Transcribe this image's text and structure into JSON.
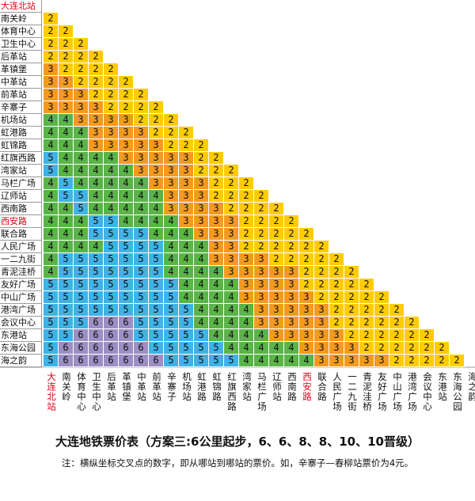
{
  "chart_data": {
    "type": "table",
    "title": "大连地铁票价表（方案三:6公里起步，6、6、8、8、10、10晋级）",
    "note": "注：横纵坐标交叉点的数字，即从哪站到哪站的票价。如，辛寨子—春柳站票价为4元。",
    "stations": [
      "大连北站",
      "南关岭",
      "体育中心",
      "卫生中心",
      "后革站",
      "革镇堡",
      "中革站",
      "前革站",
      "辛寨子",
      "机场站",
      "虹港路",
      "虹锦路",
      "红旗西路",
      "湾家站",
      "马栏广场",
      "辽师站",
      "西南路",
      "西安路",
      "联合路",
      "人民广场",
      "一二九街",
      "青泥洼桥",
      "友好广场",
      "中山广场",
      "港湾广场",
      "会议中心",
      "东港站",
      "东海公园",
      "海之韵"
    ],
    "highlighted": [
      "大连北站",
      "西安路"
    ],
    "fares": [
      [],
      [
        2
      ],
      [
        2,
        2
      ],
      [
        2,
        2,
        2
      ],
      [
        2,
        2,
        2,
        2
      ],
      [
        3,
        2,
        2,
        2,
        2
      ],
      [
        3,
        3,
        2,
        2,
        2,
        2
      ],
      [
        3,
        3,
        3,
        2,
        2,
        2,
        2
      ],
      [
        3,
        3,
        3,
        3,
        2,
        2,
        2,
        2
      ],
      [
        4,
        4,
        3,
        3,
        3,
        3,
        2,
        2,
        2
      ],
      [
        4,
        4,
        4,
        3,
        3,
        3,
        3,
        2,
        2,
        2
      ],
      [
        4,
        4,
        4,
        3,
        3,
        3,
        3,
        3,
        2,
        2,
        2
      ],
      [
        5,
        4,
        4,
        4,
        4,
        3,
        3,
        3,
        3,
        3,
        2,
        2
      ],
      [
        5,
        4,
        4,
        4,
        4,
        4,
        3,
        3,
        3,
        3,
        2,
        2,
        2
      ],
      [
        4,
        5,
        4,
        4,
        4,
        4,
        4,
        3,
        3,
        3,
        3,
        2,
        2,
        2
      ],
      [
        4,
        5,
        5,
        4,
        4,
        4,
        4,
        4,
        3,
        3,
        3,
        2,
        2,
        2,
        2
      ],
      [
        4,
        4,
        5,
        4,
        4,
        4,
        4,
        4,
        3,
        3,
        3,
        3,
        2,
        2,
        2,
        2
      ],
      [
        4,
        4,
        4,
        5,
        5,
        4,
        4,
        4,
        4,
        3,
        3,
        3,
        3,
        2,
        2,
        2,
        2
      ],
      [
        4,
        4,
        4,
        5,
        5,
        5,
        5,
        4,
        4,
        4,
        3,
        3,
        3,
        2,
        2,
        2,
        2,
        2
      ],
      [
        4,
        4,
        4,
        4,
        5,
        5,
        5,
        5,
        4,
        4,
        4,
        3,
        3,
        2,
        2,
        2,
        2,
        2,
        2
      ],
      [
        4,
        5,
        5,
        5,
        5,
        5,
        5,
        5,
        4,
        4,
        4,
        3,
        3,
        3,
        3,
        2,
        2,
        2,
        2,
        2
      ],
      [
        4,
        5,
        5,
        5,
        5,
        5,
        5,
        5,
        4,
        4,
        4,
        4,
        3,
        3,
        3,
        3,
        3,
        2,
        2,
        2,
        2
      ],
      [
        5,
        5,
        5,
        5,
        5,
        5,
        5,
        5,
        5,
        4,
        4,
        4,
        4,
        3,
        3,
        3,
        3,
        2,
        2,
        2,
        2,
        2
      ],
      [
        5,
        5,
        5,
        5,
        5,
        5,
        5,
        5,
        5,
        4,
        4,
        4,
        4,
        3,
        3,
        3,
        3,
        3,
        2,
        2,
        2,
        2,
        2
      ],
      [
        5,
        5,
        5,
        5,
        5,
        5,
        5,
        5,
        5,
        5,
        4,
        4,
        4,
        4,
        3,
        3,
        3,
        3,
        3,
        2,
        2,
        2,
        2,
        2
      ],
      [
        5,
        5,
        5,
        6,
        6,
        6,
        5,
        5,
        5,
        5,
        4,
        4,
        4,
        4,
        3,
        3,
        3,
        3,
        3,
        2,
        2,
        2,
        2,
        2,
        2
      ],
      [
        5,
        5,
        6,
        6,
        6,
        6,
        5,
        5,
        5,
        5,
        5,
        4,
        4,
        4,
        4,
        3,
        3,
        3,
        3,
        3,
        2,
        2,
        2,
        2,
        2,
        2
      ],
      [
        5,
        6,
        6,
        6,
        6,
        6,
        6,
        5,
        5,
        5,
        5,
        5,
        4,
        4,
        4,
        4,
        4,
        3,
        3,
        3,
        3,
        2,
        2,
        2,
        2,
        2,
        2
      ],
      [
        5,
        6,
        6,
        6,
        6,
        6,
        6,
        6,
        5,
        5,
        5,
        5,
        5,
        4,
        4,
        4,
        4,
        4,
        3,
        3,
        3,
        3,
        3,
        2,
        2,
        2,
        2,
        2
      ]
    ],
    "fare_colors": {
      "2": "#ffcc00",
      "3": "#f39a1f",
      "4": "#5ab448",
      "5": "#3fb2e6",
      "6": "#9b8fc4"
    },
    "label_color": "#111111",
    "highlight_color": "#e2001a"
  }
}
